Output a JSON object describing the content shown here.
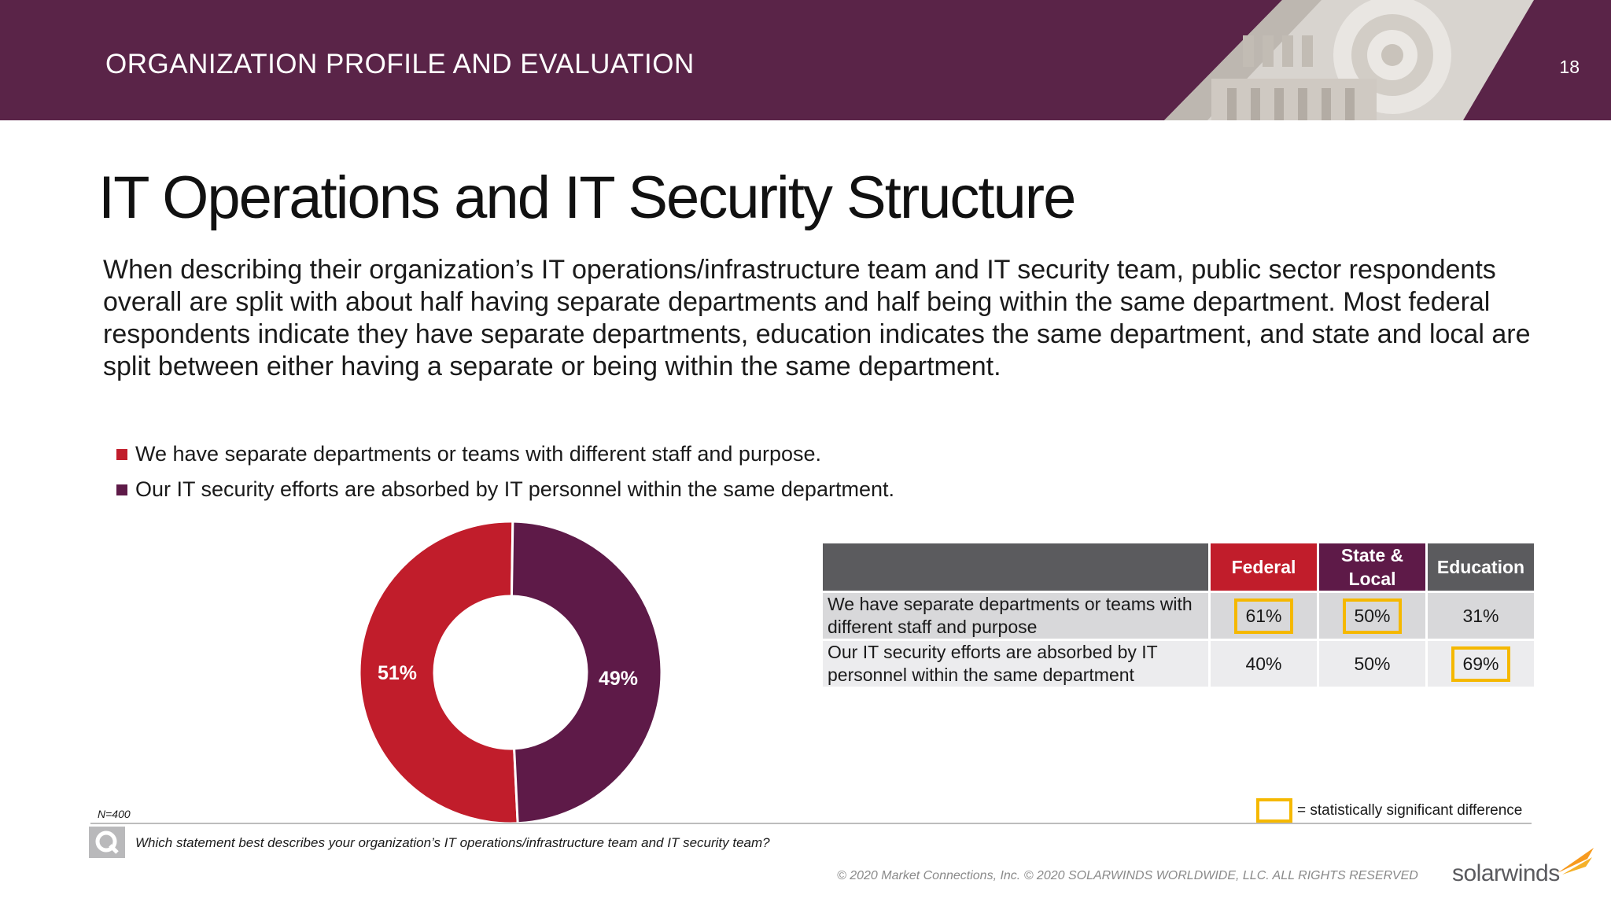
{
  "header": {
    "section_title": "ORGANIZATION PROFILE AND EVALUATION",
    "page_number": "18"
  },
  "title": "IT Operations and IT Security Structure",
  "intro": "When describing their organization’s IT operations/infrastructure team and IT security team, public sector respondents overall are split with about half having separate departments and half being within the same department. Most federal respondents indicate they have separate departments, education indicates the same department, and state and local are split between either having a separate or being within the same department.",
  "colors": {
    "red": "#c11d2b",
    "purple": "#5e1a48",
    "header": "#5a2448",
    "highlight": "#f5b800",
    "gray": "#5b5b5e"
  },
  "chart_data": [
    {
      "type": "pie",
      "labels": [
        "We have separate departments or teams with different staff and purpose.",
        "Our IT security efforts are absorbed by IT personnel within the same department."
      ],
      "values": [
        51,
        49
      ],
      "value_labels": [
        "51%",
        "49%"
      ],
      "colors": [
        "#c11d2b",
        "#5e1a48"
      ],
      "legend": "top-left"
    },
    {
      "type": "table",
      "columns": [
        "Federal",
        "State & Local",
        "Education"
      ],
      "rows": [
        {
          "label": "We have separate departments or teams with different staff and purpose",
          "values": [
            "61%",
            "50%",
            "31%"
          ],
          "significant": [
            true,
            true,
            false
          ]
        },
        {
          "label": "Our IT security efforts are absorbed by IT personnel within the same department",
          "values": [
            "40%",
            "50%",
            "69%"
          ],
          "significant": [
            false,
            false,
            true
          ]
        }
      ]
    }
  ],
  "significance_note": "= statistically significant difference",
  "footer": {
    "sample_size": "N=400",
    "question": "Which statement best describes your organization’s IT operations/infrastructure team and IT security team?",
    "copyright": "© 2020 Market Connections, Inc. © 2020 SOLARWINDS WORLDWIDE, LLC. ALL RIGHTS RESERVED",
    "brand": "solarwinds"
  }
}
